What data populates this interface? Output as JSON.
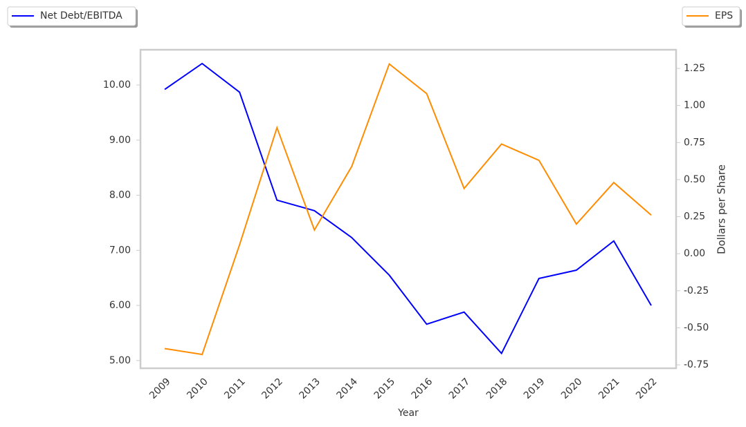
{
  "chart_data": {
    "type": "line",
    "x_label": "Year",
    "y2_label": "Dollars per Share",
    "categories": [
      "2009",
      "2010",
      "2011",
      "2012",
      "2013",
      "2014",
      "2015",
      "2016",
      "2017",
      "2018",
      "2019",
      "2020",
      "2021",
      "2022"
    ],
    "series": [
      {
        "name": "Net Debt/EBITDA",
        "color": "#0000ff",
        "axis": "y",
        "values": [
          9.92,
          10.39,
          9.87,
          7.91,
          7.72,
          7.23,
          6.55,
          5.66,
          5.88,
          5.13,
          6.49,
          6.64,
          7.17,
          6.0
        ]
      },
      {
        "name": "EPS",
        "color": "#ff8c00",
        "axis": "y2",
        "values": [
          -0.64,
          -0.68,
          0.06,
          0.85,
          0.16,
          0.59,
          1.28,
          1.08,
          0.44,
          0.74,
          0.63,
          0.2,
          0.48,
          0.26
        ]
      }
    ],
    "ylim": [
      4.86,
      10.64
    ],
    "yticks": [
      {
        "value": 5,
        "label": "5.00"
      },
      {
        "value": 6,
        "label": "6.00"
      },
      {
        "value": 7,
        "label": "7.00"
      },
      {
        "value": 8,
        "label": "8.00"
      },
      {
        "value": 9,
        "label": "9.00"
      },
      {
        "value": 10,
        "label": "10.00"
      }
    ],
    "y2lim": [
      -0.773,
      1.376
    ],
    "y2ticks": [
      -0.75,
      {
        "value": -0.5,
        "label": "-0.50"
      },
      -0.25,
      {
        "value": 0,
        "label": "0.00"
      },
      0.25,
      {
        "value": 0.5,
        "label": "0.50"
      },
      0.75,
      {
        "value": 1,
        "label": "1.00"
      },
      1.25
    ],
    "grid": false
  }
}
